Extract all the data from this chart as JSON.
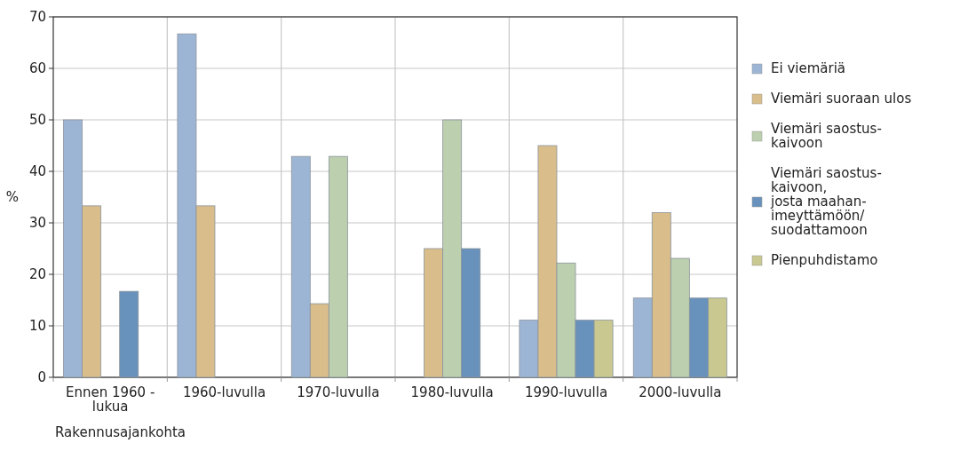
{
  "chart_data": {
    "type": "bar",
    "xlabel": "Rakennusajankohta",
    "ylabel": "%",
    "categories": [
      "Ennen 1960 -\nlukua",
      "1960-luvulla",
      "1970-luvulla",
      "1980-luvulla",
      "1990-luvulla",
      "2000-luvulla"
    ],
    "series": [
      {
        "name": "Ei viemäriä",
        "color": "#9db5d4",
        "values": [
          50,
          66.7,
          42.9,
          0,
          11.1,
          15.4
        ]
      },
      {
        "name": "Viemäri suoraan ulos",
        "color": "#d9bd8b",
        "values": [
          33.3,
          33.3,
          14.3,
          25,
          45,
          32
        ]
      },
      {
        "name": "Viemäri saostus-\nkaivoon",
        "color": "#bccfae",
        "values": [
          0,
          0,
          42.9,
          50,
          22.2,
          23.1
        ]
      },
      {
        "name": "Viemäri saostus-\nkaivoon,\njosta maahan-\nimeyttämöön/\nsuodattamoon",
        "color": "#6892bb",
        "values": [
          16.7,
          0,
          0,
          25,
          11.1,
          15.4
        ]
      },
      {
        "name": "Pienpuhdistamo",
        "color": "#c8c890",
        "values": [
          0,
          0,
          0,
          0,
          11.1,
          15.4
        ]
      }
    ],
    "ylim": [
      0,
      70
    ],
    "yticks": [
      0,
      10,
      20,
      30,
      40,
      50,
      60,
      70
    ],
    "grid": true,
    "legend": "right"
  }
}
